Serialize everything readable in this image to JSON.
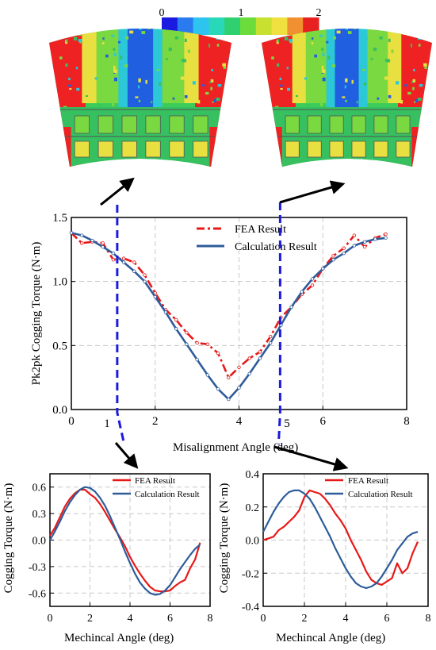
{
  "colorbar": {
    "tick_labels": [
      "0",
      "1",
      "2"
    ],
    "colors": [
      "#1a1ae0",
      "#2a7af0",
      "#2ec4f0",
      "#28d8b8",
      "#30d070",
      "#6cdc3c",
      "#c8e030",
      "#f0e040",
      "#f09030",
      "#e82020"
    ]
  },
  "fields": {
    "left": {
      "background": "#3ccc5a",
      "colors": {
        "red": "#ee2222",
        "yellow": "#e8e040",
        "lime": "#7ad840",
        "green": "#36c060",
        "cyan": "#2cc8d8",
        "blue": "#2060e0",
        "outline": "#555555"
      }
    },
    "right": {
      "background": "#3ccc5a",
      "colors": {
        "red": "#ee2222",
        "yellow": "#e8e040",
        "lime": "#7ad840",
        "green": "#36c060",
        "cyan": "#2cc8d8",
        "blue": "#2060e0",
        "outline": "#555555"
      }
    }
  },
  "annotation": {
    "line_color": "#1a1ae0",
    "arrow_color": "#000000",
    "markers": [
      "1",
      "5"
    ]
  },
  "chart_data": [
    {
      "type": "line",
      "xlabel": "Misalignment Angle (deg)",
      "ylabel": "Pk2pk Cogging Torque (N·m)",
      "xlim": [
        0,
        8
      ],
      "ylim": [
        0,
        1.5
      ],
      "xticks": [
        "0",
        "2",
        "4",
        "6",
        "8"
      ],
      "yticks": [
        "0.0",
        "0.5",
        "1.0",
        "1.5"
      ],
      "grid": true,
      "legend": "top-center",
      "series": [
        {
          "name": "FEA Result",
          "color": "#e81818",
          "dash": "dashdot",
          "x": [
            0,
            0.25,
            0.5,
            0.75,
            1.0,
            1.25,
            1.5,
            1.75,
            2.0,
            2.25,
            2.5,
            2.75,
            3.0,
            3.25,
            3.5,
            3.75,
            4.0,
            4.25,
            4.5,
            4.75,
            5.0,
            5.25,
            5.5,
            5.75,
            6.0,
            6.25,
            6.5,
            6.75,
            7.0,
            7.25,
            7.5
          ],
          "values": [
            1.38,
            1.3,
            1.31,
            1.3,
            1.17,
            1.18,
            1.15,
            1.05,
            0.91,
            0.78,
            0.7,
            0.6,
            0.52,
            0.51,
            0.44,
            0.25,
            0.33,
            0.4,
            0.45,
            0.57,
            0.72,
            0.8,
            0.9,
            0.97,
            1.1,
            1.2,
            1.26,
            1.36,
            1.27,
            1.34,
            1.37
          ]
        },
        {
          "name": "Calculation Result",
          "color": "#2e5c9a",
          "dash": "solid",
          "x": [
            0,
            0.25,
            0.5,
            0.75,
            1.0,
            1.25,
            1.5,
            1.75,
            2.0,
            2.25,
            2.5,
            2.75,
            3.0,
            3.25,
            3.5,
            3.75,
            4.0,
            4.25,
            4.5,
            4.75,
            5.0,
            5.25,
            5.5,
            5.75,
            6.0,
            6.25,
            6.5,
            6.75,
            7.0,
            7.25,
            7.5
          ],
          "values": [
            1.38,
            1.36,
            1.32,
            1.27,
            1.22,
            1.15,
            1.08,
            1.0,
            0.88,
            0.76,
            0.63,
            0.51,
            0.39,
            0.27,
            0.16,
            0.08,
            0.17,
            0.28,
            0.4,
            0.52,
            0.66,
            0.8,
            0.92,
            1.02,
            1.1,
            1.17,
            1.22,
            1.28,
            1.31,
            1.33,
            1.34
          ]
        }
      ]
    },
    {
      "type": "line",
      "xlabel": "Mechincal Angle (deg)",
      "ylabel": "Cogging Torque (N·m)",
      "xlim": [
        0,
        8
      ],
      "ylim": [
        -0.75,
        0.75
      ],
      "xticks": [
        "0",
        "2",
        "4",
        "6",
        "8"
      ],
      "yticks": [
        "-0.6",
        "-0.3",
        "0.0",
        "0.3",
        "0.6"
      ],
      "grid": true,
      "legend": "top-right",
      "series": [
        {
          "name": "FEA Result",
          "color": "#e81818",
          "dash": "solid",
          "x": [
            0,
            0.25,
            0.5,
            0.75,
            1.0,
            1.25,
            1.5,
            1.75,
            2.0,
            2.25,
            2.5,
            2.75,
            3.0,
            3.25,
            3.5,
            3.75,
            4.0,
            4.25,
            4.5,
            4.75,
            5.0,
            5.25,
            5.5,
            5.75,
            6.0,
            6.25,
            6.5,
            6.75,
            7.0,
            7.25,
            7.5
          ],
          "values": [
            0.05,
            0.14,
            0.26,
            0.38,
            0.47,
            0.53,
            0.57,
            0.57,
            0.52,
            0.48,
            0.41,
            0.32,
            0.22,
            0.12,
            0.03,
            -0.07,
            -0.19,
            -0.29,
            -0.38,
            -0.46,
            -0.53,
            -0.57,
            -0.58,
            -0.58,
            -0.57,
            -0.52,
            -0.48,
            -0.45,
            -0.32,
            -0.22,
            -0.03
          ]
        },
        {
          "name": "Calculation Result",
          "color": "#2e5c9a",
          "dash": "solid",
          "x": [
            0,
            0.25,
            0.5,
            0.75,
            1.0,
            1.25,
            1.5,
            1.75,
            2.0,
            2.25,
            2.5,
            2.75,
            3.0,
            3.25,
            3.5,
            3.75,
            4.0,
            4.25,
            4.5,
            4.75,
            5.0,
            5.25,
            5.5,
            5.75,
            6.0,
            6.25,
            6.5,
            6.75,
            7.0,
            7.25,
            7.5
          ],
          "values": [
            0.0,
            0.1,
            0.21,
            0.33,
            0.43,
            0.51,
            0.57,
            0.6,
            0.59,
            0.55,
            0.48,
            0.39,
            0.27,
            0.14,
            0.01,
            -0.13,
            -0.26,
            -0.38,
            -0.48,
            -0.55,
            -0.6,
            -0.62,
            -0.61,
            -0.57,
            -0.51,
            -0.42,
            -0.33,
            -0.25,
            -0.17,
            -0.1,
            -0.05
          ]
        }
      ]
    },
    {
      "type": "line",
      "xlabel": "Mechincal Angle (deg)",
      "ylabel": "Cogging Torque (N·m)",
      "xlim": [
        0,
        8
      ],
      "ylim": [
        -0.4,
        0.4
      ],
      "xticks": [
        "0",
        "2",
        "4",
        "6",
        "8"
      ],
      "yticks": [
        "-0.4",
        "-0.2",
        "0.0",
        "0.2",
        "0.4"
      ],
      "grid": true,
      "legend": "top-right",
      "series": [
        {
          "name": "FEA Result",
          "color": "#e81818",
          "dash": "solid",
          "x": [
            0,
            0.25,
            0.5,
            0.75,
            1.0,
            1.25,
            1.5,
            1.75,
            2.0,
            2.25,
            2.5,
            2.75,
            3.0,
            3.25,
            3.5,
            3.75,
            4.0,
            4.25,
            4.5,
            4.75,
            5.0,
            5.25,
            5.5,
            5.75,
            6.0,
            6.25,
            6.5,
            6.75,
            7.0,
            7.25,
            7.5
          ],
          "values": [
            0.0,
            0.01,
            0.02,
            0.06,
            0.08,
            0.11,
            0.14,
            0.18,
            0.26,
            0.3,
            0.29,
            0.28,
            0.25,
            0.21,
            0.16,
            0.12,
            0.07,
            0.0,
            -0.06,
            -0.12,
            -0.19,
            -0.24,
            -0.26,
            -0.27,
            -0.25,
            -0.23,
            -0.14,
            -0.2,
            -0.17,
            -0.08,
            -0.01
          ]
        },
        {
          "name": "Calculation Result",
          "color": "#2e5c9a",
          "dash": "solid",
          "x": [
            0,
            0.25,
            0.5,
            0.75,
            1.0,
            1.25,
            1.5,
            1.75,
            2.0,
            2.25,
            2.5,
            2.75,
            3.0,
            3.25,
            3.5,
            3.75,
            4.0,
            4.25,
            4.5,
            4.75,
            5.0,
            5.25,
            5.5,
            5.75,
            6.0,
            6.25,
            6.5,
            6.75,
            7.0,
            7.25,
            7.5
          ],
          "values": [
            0.05,
            0.11,
            0.17,
            0.22,
            0.26,
            0.29,
            0.3,
            0.3,
            0.28,
            0.25,
            0.2,
            0.14,
            0.08,
            0.02,
            -0.05,
            -0.11,
            -0.17,
            -0.22,
            -0.26,
            -0.28,
            -0.29,
            -0.28,
            -0.26,
            -0.22,
            -0.17,
            -0.12,
            -0.06,
            -0.02,
            0.02,
            0.04,
            0.05
          ]
        }
      ]
    }
  ]
}
